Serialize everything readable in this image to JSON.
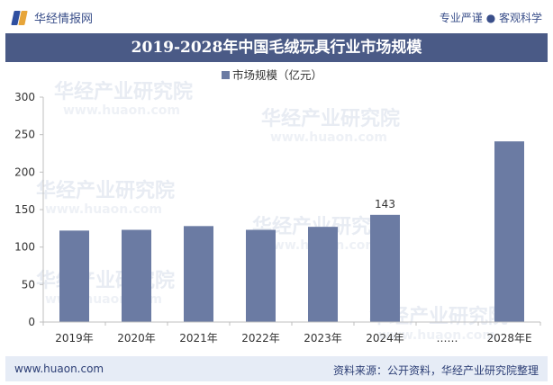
{
  "header": {
    "brand": "华经情报网",
    "slogan": "专业严谨 ● 客观科学"
  },
  "title": "2019-2028年中国毛绒玩具行业市场规模",
  "footer": {
    "url": "www.huaon.com",
    "source": "资料来源：公开资料，华经产业研究院整理"
  },
  "watermark": {
    "cn": "华经产业研究院",
    "en": "www.huaon.com"
  },
  "colors": {
    "bar": "#6b7ba3",
    "title_bg": "#4a5a86",
    "footer_bg": "#e6ecf6"
  },
  "chart_data": {
    "type": "bar",
    "categories": [
      "2019年",
      "2020年",
      "2021年",
      "2022年",
      "2023年",
      "2024年",
      "……",
      "2028年E"
    ],
    "series": [
      {
        "name": "市场规模（亿元）",
        "values": [
          122,
          123,
          128,
          123,
          127,
          143,
          null,
          241
        ]
      }
    ],
    "data_labels": {
      "2024年": "143"
    },
    "yticks": [
      0,
      50,
      100,
      150,
      200,
      250,
      300
    ],
    "ylim": [
      0,
      300
    ],
    "legend_position": "top-center",
    "grid": false
  }
}
